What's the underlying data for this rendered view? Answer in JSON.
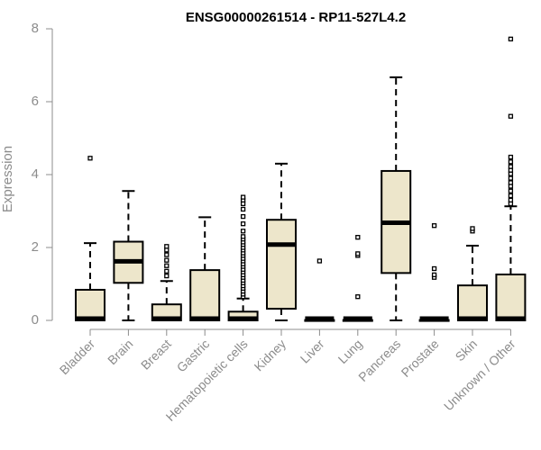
{
  "chart_data": {
    "type": "box",
    "title": "ENSG00000261514 - RP11-527L4.2",
    "ylabel": "Expression",
    "xlabel": "",
    "ylim": [
      0,
      8
    ],
    "yticks": [
      0,
      2,
      4,
      6,
      8
    ],
    "grid": false,
    "legend": "none",
    "colors": {
      "box_fill": "#ede6cb",
      "stroke": "#000000",
      "axis": "#8c8c8c",
      "text": "#8c8c8c"
    },
    "categories": [
      "Bladder",
      "Brain",
      "Breast",
      "Gastric",
      "Hematopoietic cells",
      "Kidney",
      "Liver",
      "Lung",
      "Pancreas",
      "Prostate",
      "Skin",
      "Unknown / Other"
    ],
    "boxes": [
      {
        "category": "Bladder",
        "whisker_low": 0,
        "q1": 0,
        "median": 0.02,
        "q3": 0.84,
        "whisker_high": 2.12,
        "outliers": [
          4.45
        ]
      },
      {
        "category": "Brain",
        "whisker_low": 0,
        "q1": 1.03,
        "median": 1.62,
        "q3": 2.16,
        "whisker_high": 3.55,
        "outliers": []
      },
      {
        "category": "Breast",
        "whisker_low": 0,
        "q1": 0,
        "median": 0.02,
        "q3": 0.44,
        "whisker_high": 1.08,
        "outliers": [
          1.22,
          1.35,
          1.5,
          1.65,
          1.8,
          1.93,
          2.03
        ]
      },
      {
        "category": "Gastric",
        "whisker_low": 0,
        "q1": 0,
        "median": 0.02,
        "q3": 1.38,
        "whisker_high": 2.83,
        "outliers": []
      },
      {
        "category": "Hematopoietic cells",
        "whisker_low": 0,
        "q1": 0,
        "median": 0.04,
        "q3": 0.24,
        "whisker_high": 0.6,
        "outliers": [
          0.65,
          0.72,
          0.8,
          0.88,
          0.95,
          1.03,
          1.1,
          1.18,
          1.25,
          1.33,
          1.4,
          1.48,
          1.55,
          1.63,
          1.7,
          1.78,
          1.85,
          1.93,
          2.0,
          2.08,
          2.15,
          2.23,
          2.3,
          2.45,
          2.65,
          2.85,
          3.05,
          3.2,
          3.3,
          3.38
        ]
      },
      {
        "category": "Kidney",
        "whisker_low": 0,
        "q1": 0.32,
        "median": 2.08,
        "q3": 2.76,
        "whisker_high": 4.3,
        "outliers": []
      },
      {
        "category": "Liver",
        "whisker_low": 0,
        "q1": 0,
        "median": 0,
        "q3": 0.01,
        "whisker_high": 0.02,
        "outliers": [
          1.63
        ]
      },
      {
        "category": "Lung",
        "whisker_low": 0,
        "q1": 0,
        "median": 0,
        "q3": 0.01,
        "whisker_high": 0.02,
        "outliers": [
          0.65,
          1.78,
          1.83,
          2.28
        ]
      },
      {
        "category": "Pancreas",
        "whisker_low": 0,
        "q1": 1.3,
        "median": 2.68,
        "q3": 4.1,
        "whisker_high": 6.67,
        "outliers": []
      },
      {
        "category": "Prostate",
        "whisker_low": 0,
        "q1": 0,
        "median": 0,
        "q3": 0.01,
        "whisker_high": 0.02,
        "outliers": [
          1.18,
          1.25,
          1.42,
          2.6
        ]
      },
      {
        "category": "Skin",
        "whisker_low": 0,
        "q1": 0,
        "median": 0.02,
        "q3": 0.96,
        "whisker_high": 2.05,
        "outliers": [
          2.45,
          2.52
        ]
      },
      {
        "category": "Unknown / Other",
        "whisker_low": 0,
        "q1": 0,
        "median": 0.02,
        "q3": 1.26,
        "whisker_high": 3.13,
        "outliers": [
          3.2,
          3.3,
          3.42,
          3.55,
          3.68,
          3.78,
          3.9,
          4.02,
          4.12,
          4.22,
          4.35,
          4.48,
          5.6,
          7.72
        ]
      }
    ]
  }
}
